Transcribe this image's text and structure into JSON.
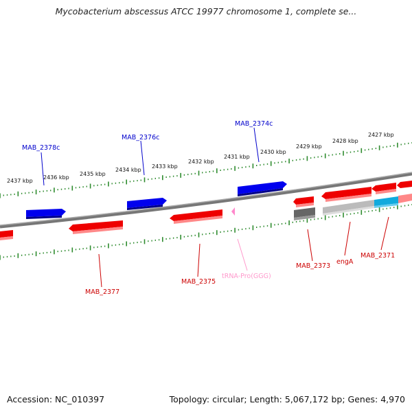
{
  "title": "Mycobacterium abscessus ATCC 19977 chromosome 1, complete se...",
  "footer": {
    "accession": "Accession: NC_010397",
    "summary": "Topology: circular; Length: 5,067,172 bp; Genes: 4,970"
  },
  "colors": {
    "backbone": "#777777",
    "ruler": "#2e8b2e",
    "forward_gene": "#0000ee",
    "reverse_gene": "#ee0000",
    "trna": "#ff88cc",
    "other_gene": "#666666",
    "cds_light": "#bbbbbb",
    "cds_cyan": "#11aadd"
  },
  "ruler_labels": [
    "2437 kbp",
    "2436 kbp",
    "2435 kbp",
    "2434 kbp",
    "2433 kbp",
    "2432 kbp",
    "2431 kbp",
    "2430 kbp",
    "2429 kbp",
    "2428 kbp",
    "2427 kbp"
  ],
  "forward_labels": [
    "MAB_2378c",
    "MAB_2376c",
    "MAB_2374c"
  ],
  "reverse_labels": [
    "MAB_2377",
    "MAB_2375",
    "tRNA-Pro(GGG)",
    "MAB_2373",
    "engA",
    "MAB_2371"
  ]
}
